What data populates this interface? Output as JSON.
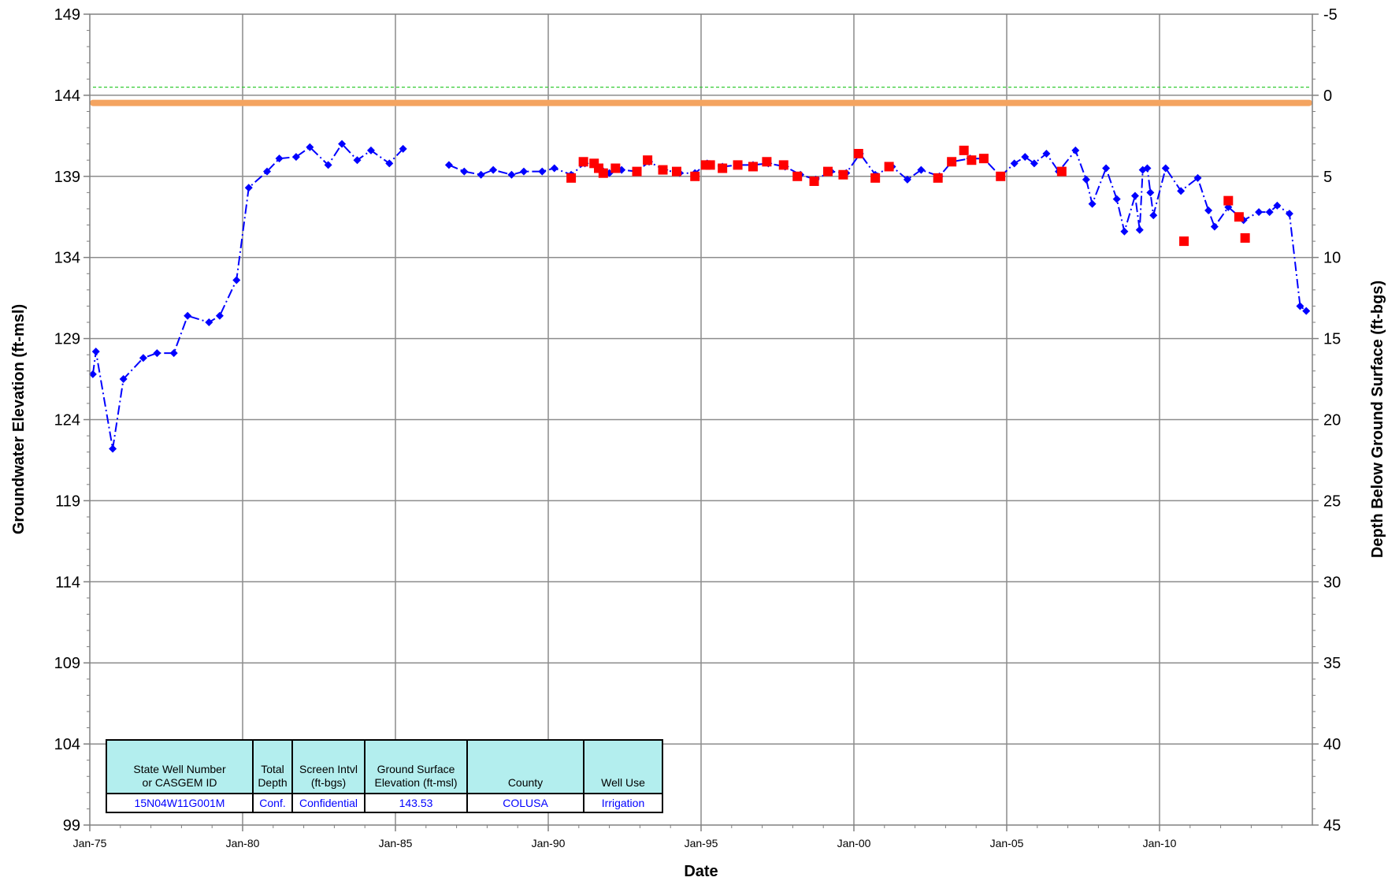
{
  "chart_data": {
    "type": "scatter",
    "title": "",
    "xlabel": "Date",
    "ylabel": "Groundwater Elevation (ft-msl)",
    "y2label": "Depth Below Ground Surface (ft-bgs)",
    "ylim": [
      99,
      149
    ],
    "y2lim": [
      45,
      -5
    ],
    "xlim": [
      1975.0,
      2015.0
    ],
    "yticks": [
      "149",
      "144",
      "139",
      "134",
      "129",
      "124",
      "119",
      "114",
      "109",
      "104",
      "99"
    ],
    "y2ticks": [
      "-5",
      "0",
      "5",
      "10",
      "15",
      "20",
      "25",
      "30",
      "35",
      "40",
      "45"
    ],
    "xticks": [
      "Jan-75",
      "Jan-80",
      "Jan-85",
      "Jan-90",
      "Jan-95",
      "Jan-00",
      "Jan-05",
      "Jan-10"
    ],
    "grid": true,
    "reference_lines": [
      {
        "y": 143.53,
        "color": "#f4a460",
        "style": "solid"
      },
      {
        "y": 144.5,
        "color": "#33cc33",
        "style": "dashed"
      }
    ],
    "series": [
      {
        "color": "#0000ff",
        "marker": "diamond",
        "line": "dash-dot",
        "segments": [
          [
            [
              1975.1,
              126.8
            ],
            [
              1975.2,
              128.2
            ],
            [
              1975.75,
              122.2
            ],
            [
              1976.1,
              126.5
            ],
            [
              1976.75,
              127.8
            ],
            [
              1977.2,
              128.1
            ],
            [
              1977.75,
              128.1
            ],
            [
              1978.2,
              130.4
            ],
            [
              1978.9,
              130.0
            ],
            [
              1979.25,
              130.4
            ],
            [
              1979.8,
              132.6
            ],
            [
              1980.2,
              138.3
            ],
            [
              1980.8,
              139.3
            ],
            [
              1981.2,
              140.1
            ],
            [
              1981.75,
              140.2
            ],
            [
              1982.2,
              140.8
            ],
            [
              1982.8,
              139.7
            ],
            [
              1983.25,
              141.0
            ],
            [
              1983.75,
              140.0
            ],
            [
              1984.2,
              140.6
            ],
            [
              1984.8,
              139.8
            ],
            [
              1985.25,
              140.7
            ]
          ],
          [
            [
              1986.75,
              139.7
            ],
            [
              1987.25,
              139.3
            ],
            [
              1987.8,
              139.1
            ],
            [
              1988.2,
              139.4
            ],
            [
              1988.8,
              139.1
            ],
            [
              1989.2,
              139.3
            ],
            [
              1989.8,
              139.3
            ],
            [
              1990.2,
              139.5
            ],
            [
              1990.75,
              139.1
            ],
            [
              1991.2,
              139.8
            ],
            [
              1991.7,
              139.5
            ],
            [
              1992.0,
              139.2
            ],
            [
              1992.4,
              139.4
            ],
            [
              1992.9,
              139.3
            ],
            [
              1993.3,
              139.9
            ],
            [
              1993.8,
              139.4
            ],
            [
              1994.3,
              139.2
            ],
            [
              1994.8,
              139.2
            ],
            [
              1995.2,
              139.8
            ],
            [
              1995.7,
              139.6
            ],
            [
              1996.2,
              139.7
            ],
            [
              1996.7,
              139.7
            ],
            [
              1997.2,
              139.8
            ],
            [
              1997.75,
              139.6
            ],
            [
              1998.25,
              139.1
            ],
            [
              1998.75,
              138.8
            ],
            [
              1999.25,
              139.3
            ],
            [
              1999.75,
              139.2
            ],
            [
              2000.2,
              140.4
            ],
            [
              2000.7,
              139.1
            ],
            [
              2001.25,
              139.6
            ],
            [
              2001.75,
              138.8
            ],
            [
              2002.2,
              139.4
            ],
            [
              2002.8,
              139.0
            ],
            [
              2003.2,
              139.9
            ],
            [
              2003.8,
              140.1
            ],
            [
              2004.25,
              140.1
            ],
            [
              2004.8,
              139.0
            ],
            [
              2005.25,
              139.8
            ],
            [
              2005.6,
              140.2
            ],
            [
              2005.9,
              139.8
            ],
            [
              2006.3,
              140.4
            ],
            [
              2006.7,
              139.3
            ],
            [
              2007.25,
              140.6
            ],
            [
              2007.6,
              138.8
            ],
            [
              2007.8,
              137.3
            ],
            [
              2008.25,
              139.5
            ],
            [
              2008.6,
              137.6
            ],
            [
              2008.85,
              135.6
            ],
            [
              2009.2,
              137.8
            ],
            [
              2009.35,
              135.7
            ],
            [
              2009.45,
              139.4
            ],
            [
              2009.6,
              139.5
            ],
            [
              2009.7,
              138.0
            ],
            [
              2009.8,
              136.6
            ],
            [
              2010.2,
              139.5
            ],
            [
              2010.7,
              138.1
            ],
            [
              2011.25,
              138.9
            ],
            [
              2011.6,
              136.9
            ],
            [
              2011.8,
              135.9
            ],
            [
              2012.25,
              137.1
            ],
            [
              2012.75,
              136.3
            ],
            [
              2013.25,
              136.8
            ],
            [
              2013.6,
              136.8
            ],
            [
              2013.85,
              137.2
            ],
            [
              2014.25,
              136.7
            ],
            [
              2014.6,
              131.0
            ],
            [
              2014.8,
              130.7
            ]
          ]
        ]
      },
      {
        "color": "#ff0000",
        "marker": "square",
        "line": "none",
        "points": [
          [
            1990.75,
            138.9
          ],
          [
            1991.15,
            139.9
          ],
          [
            1991.5,
            139.8
          ],
          [
            1991.65,
            139.5
          ],
          [
            1991.8,
            139.2
          ],
          [
            1992.2,
            139.5
          ],
          [
            1992.9,
            139.3
          ],
          [
            1993.25,
            140.0
          ],
          [
            1993.75,
            139.4
          ],
          [
            1994.2,
            139.3
          ],
          [
            1994.8,
            139.0
          ],
          [
            1995.15,
            139.7
          ],
          [
            1995.3,
            139.7
          ],
          [
            1995.7,
            139.5
          ],
          [
            1996.2,
            139.7
          ],
          [
            1996.7,
            139.6
          ],
          [
            1997.15,
            139.9
          ],
          [
            1997.7,
            139.7
          ],
          [
            1998.15,
            139.0
          ],
          [
            1998.7,
            138.7
          ],
          [
            1999.15,
            139.3
          ],
          [
            1999.65,
            139.1
          ],
          [
            2000.15,
            140.4
          ],
          [
            2000.7,
            138.9
          ],
          [
            2001.15,
            139.6
          ],
          [
            2002.75,
            138.9
          ],
          [
            2003.2,
            139.9
          ],
          [
            2003.6,
            140.6
          ],
          [
            2003.85,
            140.0
          ],
          [
            2004.25,
            140.1
          ],
          [
            2004.8,
            139.0
          ],
          [
            2006.8,
            139.3
          ],
          [
            2010.8,
            135.0
          ],
          [
            2012.25,
            137.5
          ],
          [
            2012.6,
            136.5
          ],
          [
            2012.8,
            135.2
          ]
        ]
      }
    ]
  },
  "info_table": {
    "headers": [
      "State Well Number\nor CASGEM ID",
      "Total\nDepth",
      "Screen Intvl\n(ft-bgs)",
      "Ground Surface\nElevation (ft-msl)",
      "County",
      "Well Use"
    ],
    "values": [
      "15N04W11G001M",
      "Conf.",
      "Confidential",
      "143.53",
      "COLUSA",
      "Irrigation"
    ]
  }
}
